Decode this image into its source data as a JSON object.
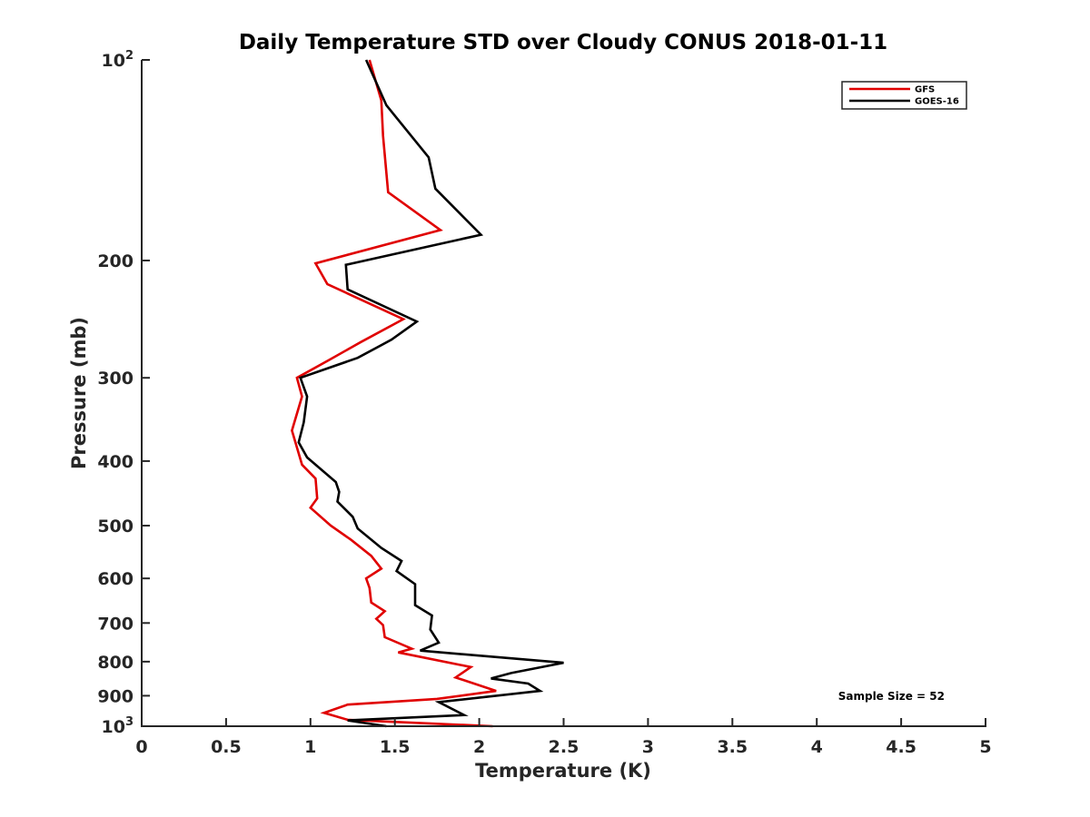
{
  "chart_data": {
    "type": "line",
    "title": "Daily Temperature STD over Cloudy CONUS 2018-01-11",
    "xlabel": "Temperature (K)",
    "ylabel": "Pressure (mb)",
    "xlim": [
      0,
      5
    ],
    "ylim": [
      100,
      1000
    ],
    "yscale": "log",
    "y_reversed": true,
    "grid": false,
    "legend_position": "top-right",
    "x_ticks": [
      0,
      0.5,
      1,
      1.5,
      2,
      2.5,
      3,
      3.5,
      4,
      4.5,
      5
    ],
    "x_tick_labels": [
      "0",
      "0.5",
      "1",
      "1.5",
      "2",
      "2.5",
      "3",
      "3.5",
      "4",
      "4.5",
      "5"
    ],
    "y_ticks": [
      100,
      200,
      300,
      400,
      500,
      600,
      700,
      800,
      900,
      1000
    ],
    "y_tick_labels": [
      {
        "base": "10",
        "exp": "2"
      },
      {
        "base": "200"
      },
      {
        "base": "300"
      },
      {
        "base": "400"
      },
      {
        "base": "500"
      },
      {
        "base": "600"
      },
      {
        "base": "700"
      },
      {
        "base": "800"
      },
      {
        "base": "900"
      },
      {
        "base": "10",
        "exp": "3"
      }
    ],
    "annotation": "Sample Size = 52",
    "series": [
      {
        "name": "GFS",
        "color": "#e00000",
        "points": [
          [
            1.35,
            100
          ],
          [
            1.42,
            115
          ],
          [
            1.43,
            130
          ],
          [
            1.46,
            158
          ],
          [
            1.77,
            180
          ],
          [
            1.03,
            202
          ],
          [
            1.1,
            217
          ],
          [
            1.55,
            245
          ],
          [
            1.3,
            265
          ],
          [
            1.1,
            283
          ],
          [
            0.92,
            300
          ],
          [
            0.95,
            320
          ],
          [
            0.89,
            360
          ],
          [
            0.95,
            405
          ],
          [
            1.03,
            425
          ],
          [
            1.04,
            455
          ],
          [
            1.0,
            470
          ],
          [
            1.12,
            500
          ],
          [
            1.24,
            525
          ],
          [
            1.36,
            555
          ],
          [
            1.42,
            580
          ],
          [
            1.33,
            600
          ],
          [
            1.35,
            620
          ],
          [
            1.36,
            652
          ],
          [
            1.44,
            672
          ],
          [
            1.39,
            690
          ],
          [
            1.43,
            705
          ],
          [
            1.44,
            735
          ],
          [
            1.6,
            765
          ],
          [
            1.52,
            775
          ],
          [
            1.95,
            815
          ],
          [
            1.86,
            845
          ],
          [
            2.1,
            885
          ],
          [
            1.75,
            910
          ],
          [
            1.22,
            928
          ],
          [
            1.08,
            955
          ],
          [
            1.22,
            978
          ],
          [
            2.08,
            1000
          ]
        ]
      },
      {
        "name": "GOES-16",
        "color": "#000000",
        "points": [
          [
            1.33,
            100
          ],
          [
            1.45,
            117
          ],
          [
            1.7,
            140
          ],
          [
            1.74,
            156
          ],
          [
            2.01,
            183
          ],
          [
            1.21,
            203
          ],
          [
            1.22,
            221
          ],
          [
            1.63,
            247
          ],
          [
            1.48,
            263
          ],
          [
            1.28,
            280
          ],
          [
            0.94,
            300
          ],
          [
            0.98,
            320
          ],
          [
            0.96,
            350
          ],
          [
            0.93,
            375
          ],
          [
            0.98,
            395
          ],
          [
            1.15,
            430
          ],
          [
            1.17,
            445
          ],
          [
            1.16,
            460
          ],
          [
            1.25,
            485
          ],
          [
            1.28,
            505
          ],
          [
            1.42,
            540
          ],
          [
            1.54,
            565
          ],
          [
            1.51,
            585
          ],
          [
            1.62,
            612
          ],
          [
            1.62,
            658
          ],
          [
            1.72,
            682
          ],
          [
            1.71,
            716
          ],
          [
            1.76,
            749
          ],
          [
            1.65,
            770
          ],
          [
            2.5,
            803
          ],
          [
            2.19,
            832
          ],
          [
            2.07,
            848
          ],
          [
            2.29,
            863
          ],
          [
            2.36,
            885
          ],
          [
            1.76,
            920
          ],
          [
            1.91,
            962
          ],
          [
            1.22,
            980
          ],
          [
            1.45,
            1000
          ]
        ]
      }
    ]
  }
}
